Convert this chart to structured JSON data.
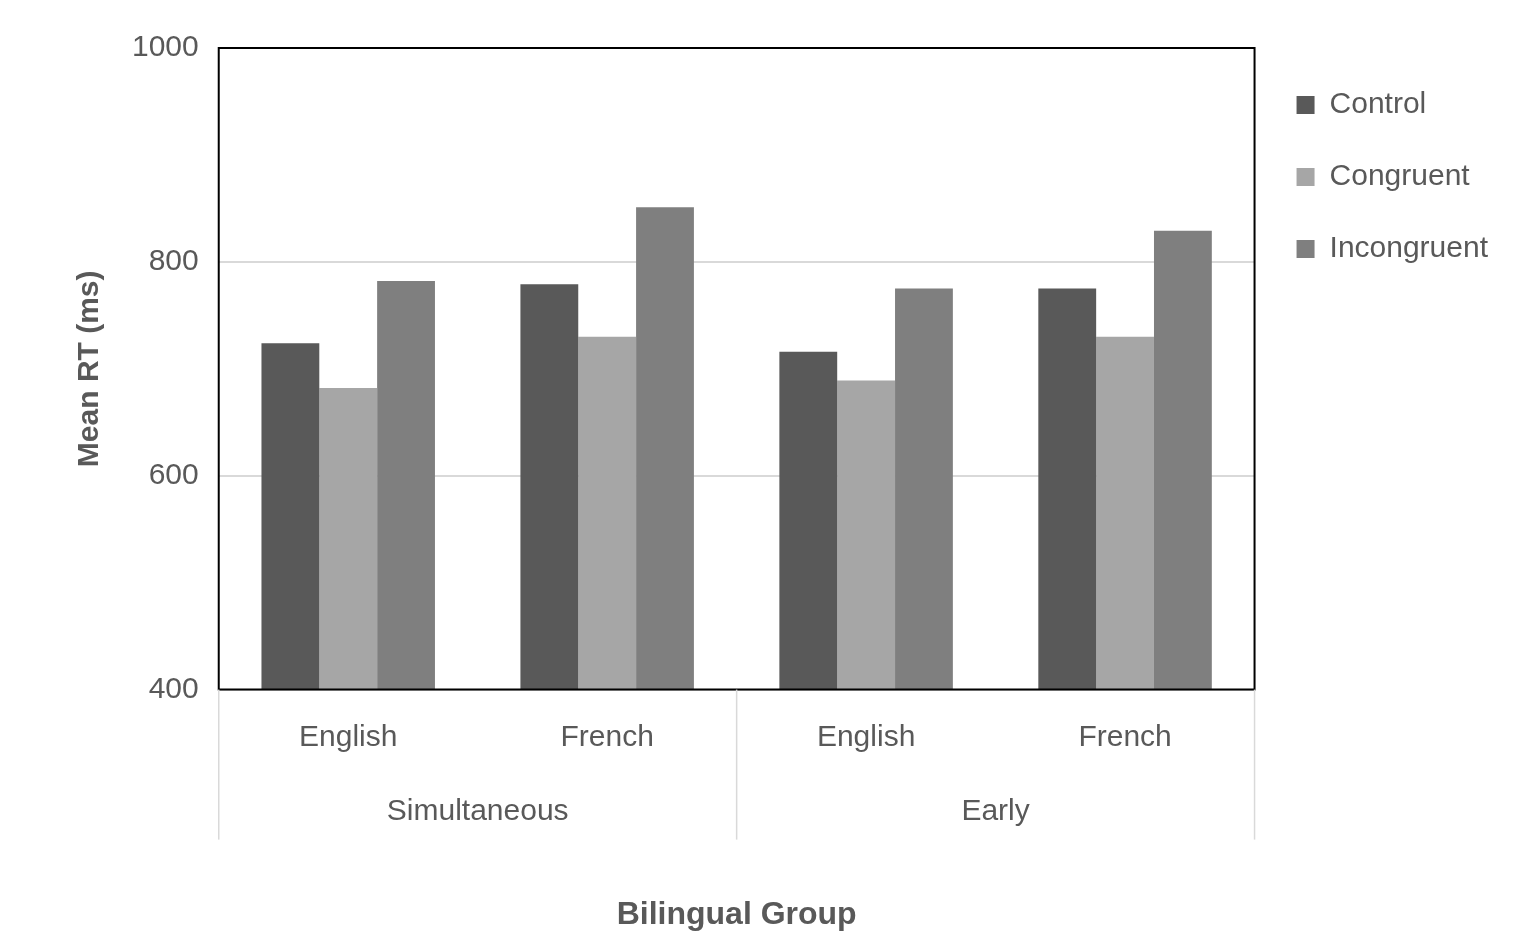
{
  "chart_data": {
    "type": "bar",
    "categories": [
      "English",
      "French",
      "English",
      "French"
    ],
    "series": [
      {
        "name": "Control",
        "color": "#595959",
        "values": [
          724,
          779,
          716,
          775
        ]
      },
      {
        "name": "Congruent",
        "color": "#a6a6a6",
        "values": [
          682,
          730,
          689,
          730
        ]
      },
      {
        "name": "Incongruent",
        "color": "#7f7f7f",
        "values": [
          782,
          851,
          775,
          829
        ]
      }
    ],
    "xlabel": "Bilingual Group",
    "ylabel": "Mean RT (ms)",
    "annotations": [
      "Simultaneous",
      "Early"
    ],
    "ylim": [
      400,
      1000
    ],
    "yticks": [
      400,
      600,
      800,
      1000
    ],
    "grid": "y",
    "legend": "top right"
  }
}
